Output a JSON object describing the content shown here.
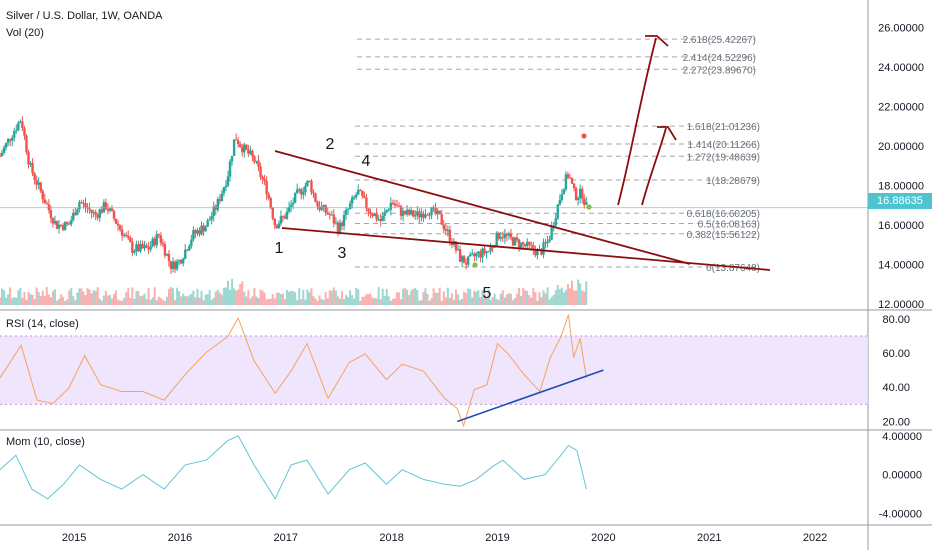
{
  "header": {
    "symbol_line": "Silver / U.S. Dollar, 1W, OANDA",
    "volume_label": "Vol (20)"
  },
  "current_price": "16.88635",
  "rsi_label": "RSI (14, close)",
  "mom_label": "Mom (10, close)",
  "colors": {
    "up": "#26a69a",
    "down": "#ef5350",
    "annotation": "#8b0e0e",
    "trendline_blue": "#1e4bb8",
    "rsi_line": "#f7a35c",
    "rsi_band": "#eadcfb",
    "mom_line": "#62c6d4",
    "price_tag": "#4fc3d0"
  },
  "chart_data": [
    {
      "type": "candlestick",
      "title": "Silver / U.S. Dollar, 1W, OANDA",
      "y_axis_ticks": [
        "12.00000",
        "14.00000",
        "16.00000",
        "18.00000",
        "20.00000",
        "22.00000",
        "24.00000",
        "26.00000"
      ],
      "ylim": [
        11.7,
        27.0
      ],
      "x_axis_ticks": [
        "2015",
        "2016",
        "2017",
        "2018",
        "2019",
        "2020",
        "2021",
        "2022"
      ],
      "xlim": [
        2014.3,
        2022.5
      ],
      "price_path": [
        [
          2014.3,
          19.5
        ],
        [
          2014.4,
          20.5
        ],
        [
          2014.5,
          21.4
        ],
        [
          2014.58,
          19.0
        ],
        [
          2014.7,
          17.5
        ],
        [
          2014.83,
          16.0
        ],
        [
          2014.95,
          16.0
        ],
        [
          2015.05,
          17.2
        ],
        [
          2015.2,
          16.5
        ],
        [
          2015.3,
          17.0
        ],
        [
          2015.45,
          15.7
        ],
        [
          2015.55,
          14.8
        ],
        [
          2015.7,
          14.8
        ],
        [
          2015.8,
          15.5
        ],
        [
          2015.92,
          13.9
        ],
        [
          2016.0,
          14.2
        ],
        [
          2016.12,
          15.5
        ],
        [
          2016.25,
          16.0
        ],
        [
          2016.35,
          17.0
        ],
        [
          2016.45,
          18.5
        ],
        [
          2016.52,
          20.5
        ],
        [
          2016.58,
          20.0
        ],
        [
          2016.7,
          19.3
        ],
        [
          2016.82,
          17.8
        ],
        [
          2016.9,
          16.0
        ],
        [
          2017.0,
          16.5
        ],
        [
          2017.1,
          17.5
        ],
        [
          2017.22,
          18.2
        ],
        [
          2017.3,
          17.0
        ],
        [
          2017.42,
          16.5
        ],
        [
          2017.5,
          15.8
        ],
        [
          2017.58,
          16.7
        ],
        [
          2017.68,
          17.7
        ],
        [
          2017.78,
          16.8
        ],
        [
          2017.9,
          16.2
        ],
        [
          2018.0,
          17.2
        ],
        [
          2018.1,
          16.6
        ],
        [
          2018.25,
          16.5
        ],
        [
          2018.35,
          16.8
        ],
        [
          2018.45,
          16.4
        ],
        [
          2018.55,
          15.4
        ],
        [
          2018.65,
          14.3
        ],
        [
          2018.71,
          14.1
        ],
        [
          2018.8,
          14.5
        ],
        [
          2018.92,
          14.7
        ],
        [
          2019.02,
          15.6
        ],
        [
          2019.15,
          15.2
        ],
        [
          2019.28,
          14.9
        ],
        [
          2019.4,
          14.6
        ],
        [
          2019.48,
          15.2
        ],
        [
          2019.55,
          16.6
        ],
        [
          2019.62,
          18.0
        ],
        [
          2019.67,
          18.6
        ],
        [
          2019.73,
          17.5
        ],
        [
          2019.8,
          17.6
        ],
        [
          2019.84,
          16.9
        ]
      ],
      "annotations": [
        {
          "text": "1"
        },
        {
          "text": "2"
        },
        {
          "text": "3"
        },
        {
          "text": "4"
        },
        {
          "text": "5"
        }
      ],
      "fibonacci_levels": [
        {
          "ratio": "0",
          "price": 13.87648,
          "label": "0(13.87648)"
        },
        {
          "ratio": "0.382",
          "price": 15.56122,
          "label": "0.382(15.56122)"
        },
        {
          "ratio": "0.5",
          "price": 16.08163,
          "label": "0.5(16.08163)"
        },
        {
          "ratio": "0.618",
          "price": 16.60205,
          "label": "0.618(16.60205)"
        },
        {
          "ratio": "1",
          "price": 18.28679,
          "label": "1(18.28679)"
        },
        {
          "ratio": "1.272",
          "price": 19.48639,
          "label": "1.272(19.48639)"
        },
        {
          "ratio": "1.414",
          "price": 20.11266,
          "label": "1.414(20.11266)"
        },
        {
          "ratio": "1.618",
          "price": 21.01236,
          "label": "1.618(21.01236)"
        },
        {
          "ratio": "2.272",
          "price": 23.8967,
          "label": "2.272(23.89670)"
        },
        {
          "ratio": "2.414",
          "price": 24.52296,
          "label": "2.414(24.52296)"
        },
        {
          "ratio": "2.618",
          "price": 25.42267,
          "label": "2.618(25.42267)"
        }
      ]
    },
    {
      "type": "line",
      "title": "RSI (14, close)",
      "y_axis_ticks": [
        "20.00",
        "40.00",
        "60.00",
        "80.00"
      ],
      "ylim": [
        15,
        84
      ],
      "band": [
        30,
        70
      ],
      "values_path": [
        [
          2014.3,
          48
        ],
        [
          2014.5,
          62
        ],
        [
          2014.65,
          35
        ],
        [
          2014.8,
          28
        ],
        [
          2014.95,
          42
        ],
        [
          2015.1,
          56
        ],
        [
          2015.25,
          44
        ],
        [
          2015.45,
          35
        ],
        [
          2015.65,
          40
        ],
        [
          2015.85,
          30
        ],
        [
          2016.05,
          50
        ],
        [
          2016.25,
          58
        ],
        [
          2016.45,
          72
        ],
        [
          2016.55,
          78
        ],
        [
          2016.7,
          58
        ],
        [
          2016.9,
          34
        ],
        [
          2017.05,
          52
        ],
        [
          2017.2,
          63
        ],
        [
          2017.4,
          36
        ],
        [
          2017.6,
          52
        ],
        [
          2017.75,
          62
        ],
        [
          2017.95,
          42
        ],
        [
          2018.1,
          56
        ],
        [
          2018.3,
          47
        ],
        [
          2018.5,
          36
        ],
        [
          2018.62,
          25
        ],
        [
          2018.68,
          20
        ],
        [
          2018.78,
          36
        ],
        [
          2018.9,
          44
        ],
        [
          2019.0,
          63
        ],
        [
          2019.1,
          62
        ],
        [
          2019.25,
          45
        ],
        [
          2019.4,
          40
        ],
        [
          2019.5,
          55
        ],
        [
          2019.6,
          72
        ],
        [
          2019.67,
          80
        ],
        [
          2019.72,
          60
        ],
        [
          2019.78,
          66
        ],
        [
          2019.84,
          48
        ]
      ],
      "trendline": [
        [
          2018.62,
          20
        ],
        [
          2020.0,
          50
        ]
      ]
    },
    {
      "type": "line",
      "title": "Mom (10, close)",
      "y_axis_ticks": [
        "4.00000",
        "0.00000",
        "-4.00000"
      ],
      "ylim": [
        -5.2,
        4.6
      ],
      "values_path": [
        [
          2014.3,
          0.5
        ],
        [
          2014.45,
          2.0
        ],
        [
          2014.6,
          -1.5
        ],
        [
          2014.75,
          -2.5
        ],
        [
          2014.9,
          -1.0
        ],
        [
          2015.05,
          1.0
        ],
        [
          2015.25,
          -0.5
        ],
        [
          2015.45,
          -1.5
        ],
        [
          2015.65,
          0.0
        ],
        [
          2015.85,
          -1.5
        ],
        [
          2016.05,
          1.0
        ],
        [
          2016.25,
          1.5
        ],
        [
          2016.45,
          3.5
        ],
        [
          2016.55,
          4.0
        ],
        [
          2016.7,
          1.0
        ],
        [
          2016.9,
          -2.5
        ],
        [
          2017.05,
          1.0
        ],
        [
          2017.2,
          1.5
        ],
        [
          2017.4,
          -2.0
        ],
        [
          2017.6,
          0.5
        ],
        [
          2017.75,
          1.2
        ],
        [
          2017.95,
          -1.0
        ],
        [
          2018.1,
          0.5
        ],
        [
          2018.3,
          -0.5
        ],
        [
          2018.5,
          -1.0
        ],
        [
          2018.65,
          -1.2
        ],
        [
          2018.8,
          -0.5
        ],
        [
          2018.95,
          0.8
        ],
        [
          2019.05,
          1.5
        ],
        [
          2019.25,
          -0.5
        ],
        [
          2019.45,
          0.0
        ],
        [
          2019.6,
          2.0
        ],
        [
          2019.67,
          3.0
        ],
        [
          2019.75,
          2.5
        ],
        [
          2019.84,
          -1.5
        ]
      ]
    }
  ]
}
